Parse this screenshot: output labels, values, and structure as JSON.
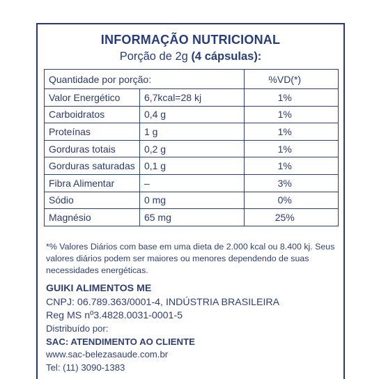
{
  "header": {
    "title": "INFORMAÇÃO NUTRICIONAL",
    "serving_prefix": "Porção de 2g ",
    "serving_bold": "(4 cápsulas):"
  },
  "table": {
    "col_quantity": "Quantidade por porção:",
    "col_vd": "%VD(*)",
    "rows": [
      {
        "name": "Valor Energético",
        "amount": "6,7kcal=28 kj",
        "vd": "1%"
      },
      {
        "name": "Carboidratos",
        "amount": "0,4 g",
        "vd": "1%"
      },
      {
        "name": "Proteínas",
        "amount": "1 g",
        "vd": "1%"
      },
      {
        "name": "Gorduras totais",
        "amount": "0,2 g",
        "vd": "1%"
      },
      {
        "name": "Gorduras saturadas",
        "amount": "0,1 g",
        "vd": "1%"
      },
      {
        "name": "Fibra Alimentar",
        "amount": "–",
        "vd": "3%"
      },
      {
        "name": "Sódio",
        "amount": "0 mg",
        "vd": "0%"
      },
      {
        "name": "Magnésio",
        "amount": "65 mg",
        "vd": "25%"
      }
    ]
  },
  "footnote": "*% Valores Diários com base em uma dieta de 2.000 kcal ou 8.400 kj. Seus valores diários podem ser maiores ou menores dependendo de suas necessidades energéticas.",
  "company": {
    "name": "GUIKI ALIMENTOS ME",
    "cnpj": "CNPJ: 06.789.363/0001-4, INDÚSTRIA BRASILEIRA",
    "reg": "Reg MS nº3.4828.0031-0001-5"
  },
  "distribution": {
    "label": "Distribuído por:",
    "sac": "SAC: ATENDIMENTO AO CLIENTE",
    "site": "www.sac-belezasaude.com.br",
    "phone": "Tel: (11) 3090-1383"
  }
}
